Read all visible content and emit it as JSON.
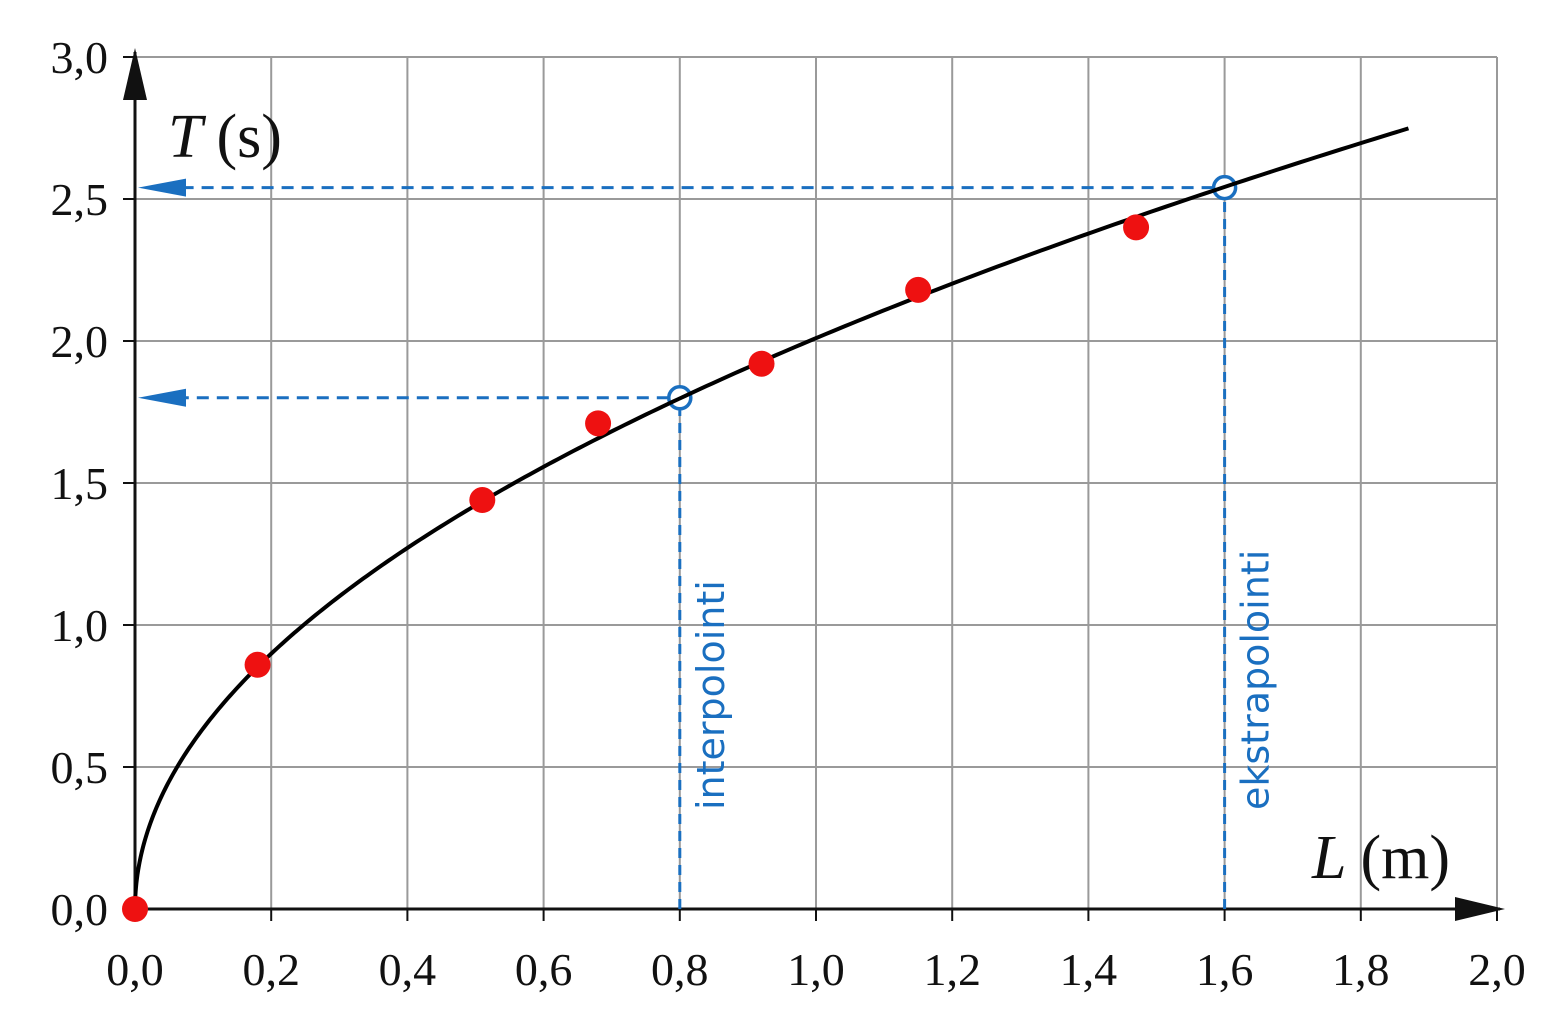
{
  "chart_data": {
    "type": "scatter",
    "title": "",
    "xlabel": {
      "symbol": "L",
      "unit": "(m)"
    },
    "ylabel": {
      "symbol": "T",
      "unit": "(s)"
    },
    "xlim": [
      0.0,
      2.0
    ],
    "ylim": [
      0.0,
      3.0
    ],
    "x_ticks": [
      "0,0",
      "0,2",
      "0,4",
      "0,6",
      "0,8",
      "1,0",
      "1,2",
      "1,4",
      "1,6",
      "1,8",
      "2,0"
    ],
    "y_ticks": [
      "0,0",
      "0,5",
      "1,0",
      "1,5",
      "2,0",
      "2,5",
      "3,0"
    ],
    "grid": true,
    "series": [
      {
        "kind": "points",
        "color": "#ee1111",
        "points": [
          {
            "x": 0.0,
            "y": 0.0
          },
          {
            "x": 0.18,
            "y": 0.86
          },
          {
            "x": 0.51,
            "y": 1.44
          },
          {
            "x": 0.68,
            "y": 1.71
          },
          {
            "x": 0.92,
            "y": 1.92
          },
          {
            "x": 1.15,
            "y": 2.18
          },
          {
            "x": 1.47,
            "y": 2.4
          }
        ]
      },
      {
        "kind": "curve",
        "color": "#000000",
        "formula": "T = 2.01 * sqrt(L)",
        "coef": 2.01,
        "x_range": [
          0.0,
          1.87
        ]
      }
    ],
    "annotations": [
      {
        "label": "interpolointi",
        "x": 0.8,
        "y": 1.8,
        "color": "#1a6fc0"
      },
      {
        "label": "ekstrapolointi",
        "x": 1.6,
        "y": 2.54,
        "color": "#1a6fc0"
      }
    ]
  }
}
